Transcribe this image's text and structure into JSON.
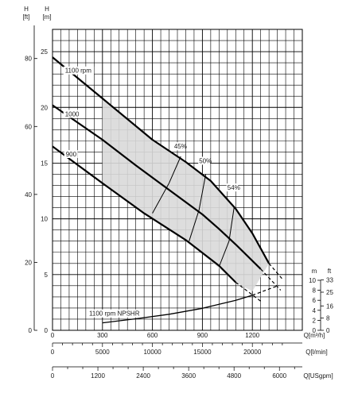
{
  "chart_data": {
    "type": "line",
    "axes": {
      "head_m": {
        "unit": "[m]",
        "label": "H",
        "ticks": [
          "0",
          "5",
          "10",
          "15",
          "20",
          "25"
        ],
        "range": [
          0,
          27
        ]
      },
      "head_ft": {
        "unit": "[ft]",
        "label": "H",
        "ticks": [
          "0",
          "20",
          "40",
          "60",
          "80"
        ]
      },
      "flow_m3h": {
        "label": "Q[m³/h]",
        "ticks": [
          "0",
          "300",
          "600",
          "900",
          "1200"
        ],
        "range": [
          0,
          1500
        ]
      },
      "flow_lmin": {
        "label": "Q[l/min]",
        "ticks": [
          "0",
          "5000",
          "10000",
          "15000",
          "20000"
        ]
      },
      "flow_usgpm": {
        "label": "Q[USgpm]",
        "ticks": [
          "0",
          "1200",
          "2400",
          "3600",
          "4800",
          "6000"
        ]
      },
      "npshr_m": {
        "unit": "m",
        "ticks": [
          "0",
          "2",
          "4",
          "6",
          "8",
          "10"
        ],
        "range": [
          0,
          10
        ]
      },
      "npshr_ft": {
        "unit": "ft",
        "ticks": [
          "0",
          "8",
          "16",
          "25",
          "33"
        ]
      }
    },
    "curve_labels": {
      "rpm1100": "1100 rpm",
      "rpm1000": "1000",
      "rpm900": "900",
      "npshr": "1100 rpm NPSHR"
    },
    "efficiency_labels": [
      "45%",
      "50%",
      "54%"
    ],
    "series": [
      {
        "key": "rpm1100",
        "x": [
          0,
          300,
          600,
          800,
          950,
          1100,
          1200,
          1300
        ],
        "y": [
          24.5,
          20.8,
          17.1,
          15.1,
          13.4,
          10.9,
          8.7,
          6.0
        ],
        "dashed_x": [
          1300,
          1380
        ],
        "dashed_y": [
          6.0,
          4.6
        ]
      },
      {
        "key": "rpm1000",
        "x": [
          0,
          300,
          500,
          700,
          900,
          1000,
          1100,
          1250
        ],
        "y": [
          20.2,
          17.1,
          14.8,
          12.6,
          10.4,
          9.1,
          7.7,
          5.5
        ],
        "dashed_x": [
          1250,
          1370
        ],
        "dashed_y": [
          5.5,
          3.6
        ]
      },
      {
        "key": "rpm900",
        "x": [
          0,
          300,
          550,
          800,
          1000,
          1100
        ],
        "y": [
          16.5,
          13.2,
          10.5,
          8.1,
          5.8,
          4.3
        ],
        "dashed_x": [
          1100,
          1260
        ],
        "dashed_y": [
          4.3,
          2.5
        ]
      },
      {
        "key": "npshr",
        "axis": "npshr_m",
        "x": [
          300,
          500,
          700,
          900,
          1100,
          1200
        ],
        "y": [
          1.5,
          2.3,
          3.2,
          4.4,
          6.0,
          7.0
        ],
        "dashed_x": [
          1200,
          1360
        ],
        "dashed_y": [
          7.0,
          9.0
        ]
      }
    ],
    "efficiency_isolines": [
      {
        "label": "45%",
        "x": [
          600,
          700,
          770
        ],
        "y": [
          10.5,
          13.2,
          15.6
        ]
      },
      {
        "label": "50%",
        "x": [
          820,
          880,
          920
        ],
        "y": [
          8.0,
          10.8,
          14.0
        ]
      },
      {
        "label": "54%",
        "x": [
          1000,
          1060,
          1090
        ],
        "y": [
          5.7,
          8.0,
          11.0
        ]
      }
    ],
    "operating_region": {
      "upper_x": [
        300,
        600,
        800,
        950,
        1100,
        1200,
        1300
      ],
      "upper_y": [
        20.8,
        17.1,
        15.1,
        13.4,
        10.9,
        8.7,
        6.0
      ],
      "lower_x": [
        1200,
        1100,
        800,
        550,
        300
      ],
      "lower_y": [
        3.5,
        4.3,
        8.1,
        10.5,
        13.2
      ]
    },
    "colors": {
      "grid": "#000000",
      "region": "#d9d9d9",
      "curve": "#000000"
    }
  }
}
